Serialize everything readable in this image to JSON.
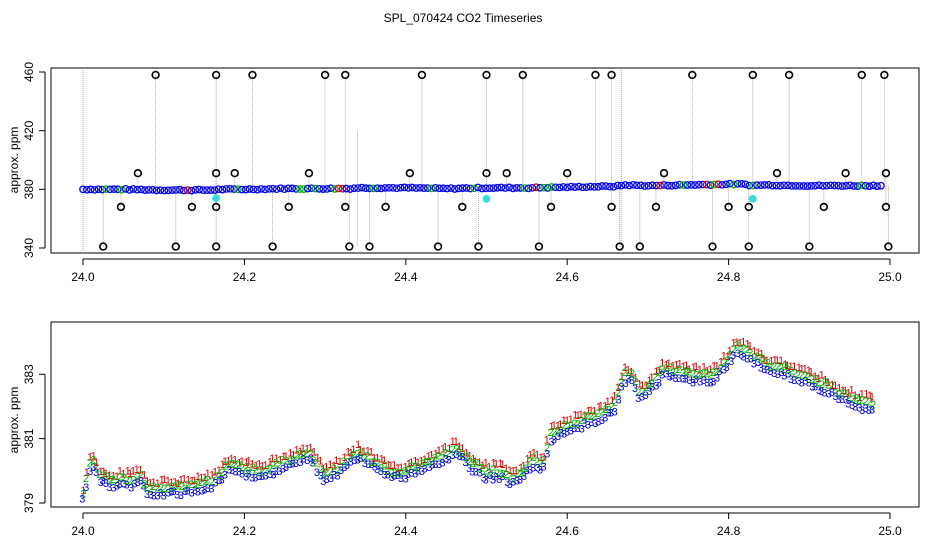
{
  "chart_data": [
    {
      "type": "scatter",
      "title": "SPL_070424  CO2 Timeseries",
      "xlabel": "",
      "ylabel": "approx. ppm",
      "xlim": [
        24.0,
        25.0
      ],
      "ylim": [
        340,
        460
      ],
      "xticks": [
        "24.0",
        "24.2",
        "24.4",
        "24.6",
        "24.8",
        "25.0"
      ],
      "yticks": [
        "340",
        "380",
        "420",
        "460"
      ],
      "baseline_series": {
        "name": "measurement",
        "x": [
          24.0,
          24.05,
          24.1,
          24.16,
          24.17,
          24.2,
          24.25,
          24.3,
          24.33,
          24.34,
          24.4,
          24.45,
          24.5,
          24.55,
          24.6,
          24.65,
          24.66,
          24.67,
          24.7,
          24.75,
          24.8,
          24.82,
          24.83,
          24.84,
          24.9,
          24.95,
          24.99
        ],
        "y": [
          380,
          380,
          379.5,
          379.5,
          380,
          380,
          380.5,
          380.5,
          380.5,
          381,
          381,
          380.5,
          381,
          381,
          381.5,
          382,
          382,
          383,
          382.5,
          383,
          383.5,
          383.5,
          382.5,
          383,
          382.5,
          382.5,
          382.5
        ]
      },
      "cyan_points": {
        "x": [
          24.165,
          24.5,
          24.83
        ],
        "y": [
          374,
          373.5,
          373.5
        ]
      },
      "outliers_high": {
        "x": [
          24.09,
          24.165,
          24.21,
          24.3,
          24.325,
          24.42,
          24.5,
          24.545,
          24.635,
          24.655,
          24.755,
          24.83,
          24.875,
          24.965,
          24.993
        ],
        "y": [
          458,
          458,
          458,
          458,
          458,
          458,
          458,
          458,
          458,
          458,
          458,
          458,
          458,
          458,
          458
        ]
      },
      "outliers_low": {
        "x": [
          24.025,
          24.115,
          24.165,
          24.235,
          24.33,
          24.355,
          24.44,
          24.49,
          24.565,
          24.665,
          24.69,
          24.78,
          24.825,
          24.9,
          24.998
        ],
        "y": [
          341,
          341,
          341,
          341,
          341,
          341,
          341,
          341,
          341,
          341,
          341,
          341,
          341,
          341,
          341
        ]
      },
      "outliers_mid_high": {
        "x": [
          24.068,
          24.165,
          24.188,
          24.28,
          24.405,
          24.5,
          24.525,
          24.6,
          24.72,
          24.86,
          24.945,
          24.995
        ],
        "y": [
          391,
          391,
          391,
          391,
          391,
          391,
          391,
          391,
          391,
          391,
          391,
          391
        ]
      },
      "outliers_mid_low": {
        "x": [
          24.047,
          24.135,
          24.165,
          24.255,
          24.325,
          24.375,
          24.47,
          24.58,
          24.655,
          24.71,
          24.8,
          24.825,
          24.918,
          24.995
        ],
        "y": [
          368,
          368,
          368,
          368,
          368,
          368,
          368,
          368,
          368,
          368,
          368,
          368,
          368,
          368
        ]
      }
    },
    {
      "type": "scatter",
      "title": "",
      "xlabel": "",
      "ylabel": "approx. ppm",
      "xlim": [
        24.0,
        25.0
      ],
      "ylim": [
        379,
        384.5
      ],
      "xticks": [
        "24.0",
        "24.2",
        "24.4",
        "24.6",
        "24.8",
        "25.0"
      ],
      "yticks": [
        "379",
        "381",
        "383"
      ],
      "series": [
        {
          "name": "1",
          "color": "#d40000"
        },
        {
          "name": "2",
          "color": "#00bb00"
        },
        {
          "name": "3",
          "color": "#0000dd"
        }
      ],
      "x": [
        24.0,
        24.005,
        24.01,
        24.015,
        24.02,
        24.03,
        24.04,
        24.05,
        24.06,
        24.07,
        24.08,
        24.1,
        24.12,
        24.14,
        24.16,
        24.18,
        24.2,
        24.22,
        24.24,
        24.26,
        24.28,
        24.285,
        24.3,
        24.31,
        24.32,
        24.34,
        24.36,
        24.38,
        24.4,
        24.42,
        24.44,
        24.46,
        24.47,
        24.48,
        24.5,
        24.52,
        24.53,
        24.54,
        24.56,
        24.57,
        24.58,
        24.6,
        24.62,
        24.64,
        24.66,
        24.67,
        24.68,
        24.69,
        24.7,
        24.72,
        24.74,
        24.76,
        24.78,
        24.8,
        24.81,
        24.82,
        24.83,
        24.85,
        24.87,
        24.9,
        24.92,
        24.94,
        24.96,
        24.98
      ],
      "y": [
        379.3,
        379.8,
        380.4,
        380.3,
        379.9,
        379.8,
        379.7,
        379.8,
        379.7,
        379.9,
        379.5,
        379.5,
        379.5,
        379.6,
        379.7,
        380.2,
        380.1,
        380.0,
        380.2,
        380.4,
        380.6,
        380.4,
        379.9,
        380.0,
        380.2,
        380.6,
        380.3,
        380.0,
        380.0,
        380.2,
        380.4,
        380.7,
        380.6,
        380.3,
        380.0,
        380.0,
        379.8,
        379.9,
        380.4,
        380.2,
        381.2,
        381.4,
        381.6,
        381.8,
        382.1,
        383.0,
        383.0,
        382.4,
        382.6,
        383.2,
        383.1,
        383.0,
        383.0,
        383.5,
        383.9,
        383.8,
        383.6,
        383.3,
        383.2,
        382.9,
        382.7,
        382.4,
        382.2,
        382.1
      ]
    }
  ]
}
